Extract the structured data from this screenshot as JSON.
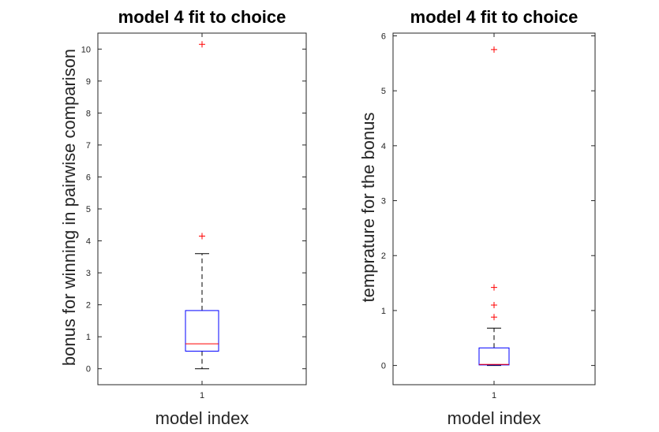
{
  "chart_data": [
    {
      "type": "box",
      "title": "model 4 fit to choice",
      "xlabel": "model index",
      "ylabel": "bonus for winning in pairwise comparison",
      "categories": [
        "1"
      ],
      "ylim": [
        -0.5,
        10.5
      ],
      "yticks": [
        "0",
        "1",
        "2",
        "3",
        "4",
        "5",
        "6",
        "7",
        "8",
        "9",
        "10"
      ],
      "box": {
        "whisker_low": 0,
        "q1": 0.55,
        "median": 0.78,
        "q3": 1.82,
        "whisker_high": 3.6
      },
      "outliers": [
        4.15,
        10.15
      ],
      "colors": {
        "box": "#0000ff",
        "median": "#ff0000",
        "outlier": "#ff0000",
        "whisker": "#000000"
      }
    },
    {
      "type": "box",
      "title": "model 4 fit to choice",
      "xlabel": "model index",
      "ylabel": "temprature for the bonus",
      "categories": [
        "1"
      ],
      "ylim": [
        -0.35,
        6.05
      ],
      "yticks": [
        "0",
        "1",
        "2",
        "3",
        "4",
        "5",
        "6"
      ],
      "box": {
        "whisker_low": 0,
        "q1": 0.01,
        "median": 0.02,
        "q3": 0.32,
        "whisker_high": 0.68
      },
      "outliers": [
        0.88,
        1.1,
        1.42,
        5.75
      ],
      "colors": {
        "box": "#0000ff",
        "median": "#ff0000",
        "outlier": "#ff0000",
        "whisker": "#000000"
      }
    }
  ]
}
